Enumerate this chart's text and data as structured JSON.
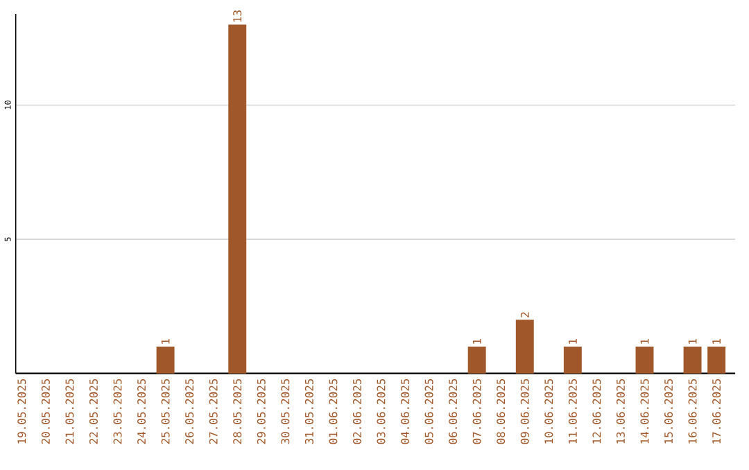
{
  "chart_data": {
    "type": "bar",
    "categories": [
      "19.05.2025",
      "20.05.2025",
      "21.05.2025",
      "22.05.2025",
      "23.05.2025",
      "24.05.2025",
      "25.05.2025",
      "26.05.2025",
      "27.05.2025",
      "28.05.2025",
      "29.05.2025",
      "30.05.2025",
      "31.05.2025",
      "01.06.2025",
      "02.06.2025",
      "03.06.2025",
      "04.06.2025",
      "05.06.2025",
      "06.06.2025",
      "07.06.2025",
      "08.06.2025",
      "09.06.2025",
      "10.06.2025",
      "11.06.2025",
      "12.06.2025",
      "13.06.2025",
      "14.06.2025",
      "15.06.2025",
      "16.06.2025",
      "17.06.2025"
    ],
    "values": [
      0,
      0,
      0,
      0,
      0,
      0,
      1,
      0,
      0,
      13,
      0,
      0,
      0,
      0,
      0,
      0,
      0,
      0,
      0,
      1,
      0,
      2,
      0,
      1,
      0,
      0,
      1,
      0,
      1,
      1
    ],
    "value_labels": [
      null,
      null,
      null,
      null,
      null,
      null,
      "1",
      null,
      null,
      "13",
      null,
      null,
      null,
      null,
      null,
      null,
      null,
      null,
      null,
      "1",
      null,
      "2",
      null,
      "1",
      null,
      null,
      "1",
      null,
      "1",
      "1"
    ],
    "color": "#a0582a",
    "ylim": [
      0,
      13.4
    ],
    "yticks": [
      5,
      10
    ],
    "grid": "y"
  }
}
